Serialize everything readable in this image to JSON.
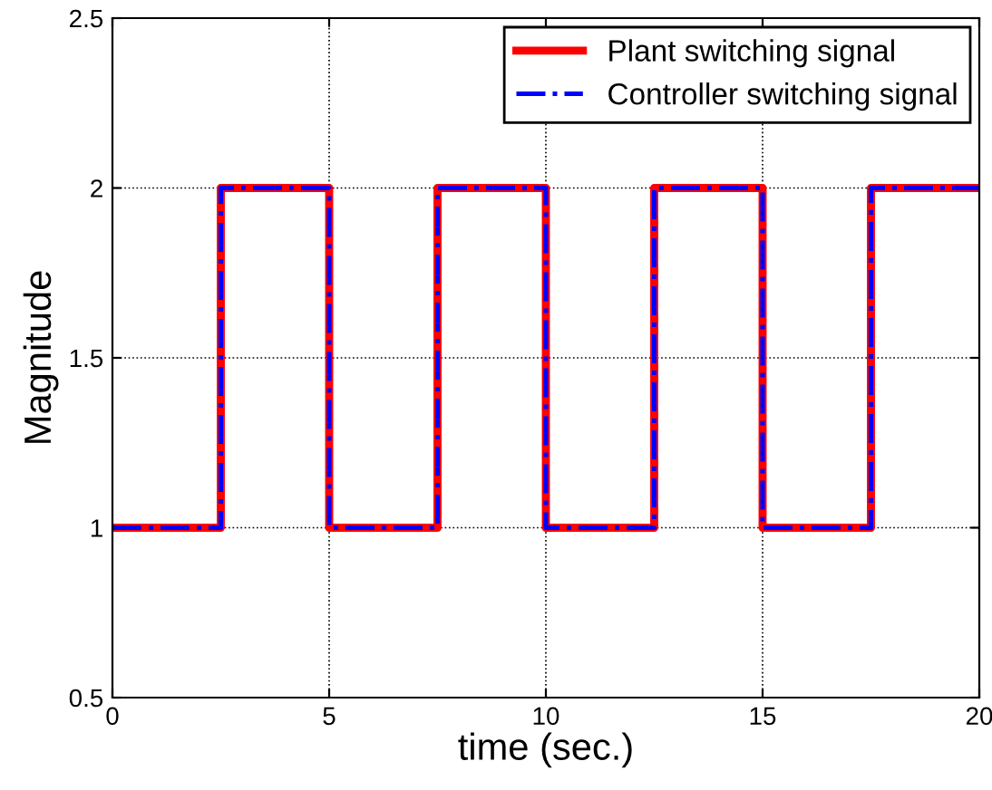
{
  "chart_data": {
    "type": "step",
    "xlabel": "time (sec.)",
    "ylabel": "Magnitude",
    "x": [
      0,
      2.5,
      5,
      7.5,
      10,
      12.5,
      15,
      17.5,
      20
    ],
    "series": [
      {
        "name": "Plant switching signal",
        "color": "#ff0000",
        "line_style": "solid",
        "values": [
          1,
          2,
          1,
          2,
          1,
          2,
          1,
          2,
          2
        ]
      },
      {
        "name": "Controller switching signal",
        "color": "#0000ff",
        "line_style": "dashdot",
        "values": [
          1,
          2,
          1,
          2,
          1,
          2,
          1,
          2,
          2
        ]
      }
    ],
    "xlim": [
      0,
      20
    ],
    "ylim": [
      0.5,
      2.5
    ],
    "xticks": [
      0,
      5,
      10,
      15,
      20
    ],
    "yticks": [
      0.5,
      1,
      1.5,
      2,
      2.5
    ],
    "grid": true,
    "legend": "top right",
    "marker": "none"
  }
}
